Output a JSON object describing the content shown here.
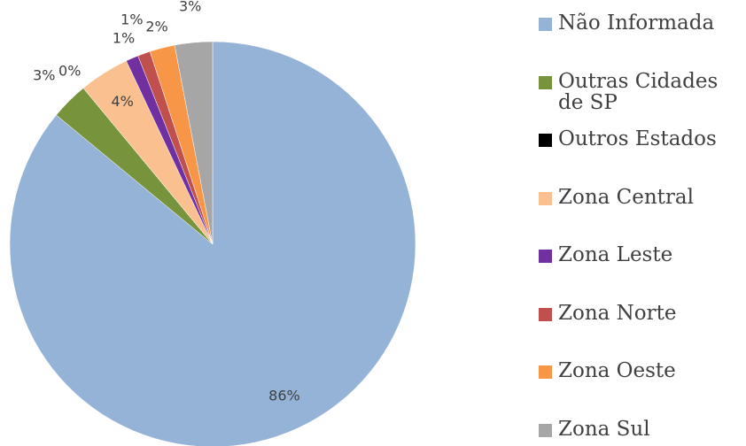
{
  "chart_data": {
    "type": "pie",
    "categories": [
      "Não Informada",
      "Outras Cidades de SP",
      "Outros Estados",
      "Zona Central",
      "Zona Leste",
      "Zona Norte",
      "Zona Oeste",
      "Zona Sul"
    ],
    "values": [
      86,
      3,
      0,
      4,
      1,
      1,
      2,
      3
    ],
    "value_labels": [
      "86%",
      "3%",
      "0%",
      "4%",
      "1%",
      "1%",
      "2%",
      "3%"
    ],
    "colors": [
      "#95b3d7",
      "#77933c",
      "#000000",
      "#fac090",
      "#7030a0",
      "#c0504d",
      "#f79646",
      "#a6a6a6"
    ],
    "legend": "right"
  }
}
